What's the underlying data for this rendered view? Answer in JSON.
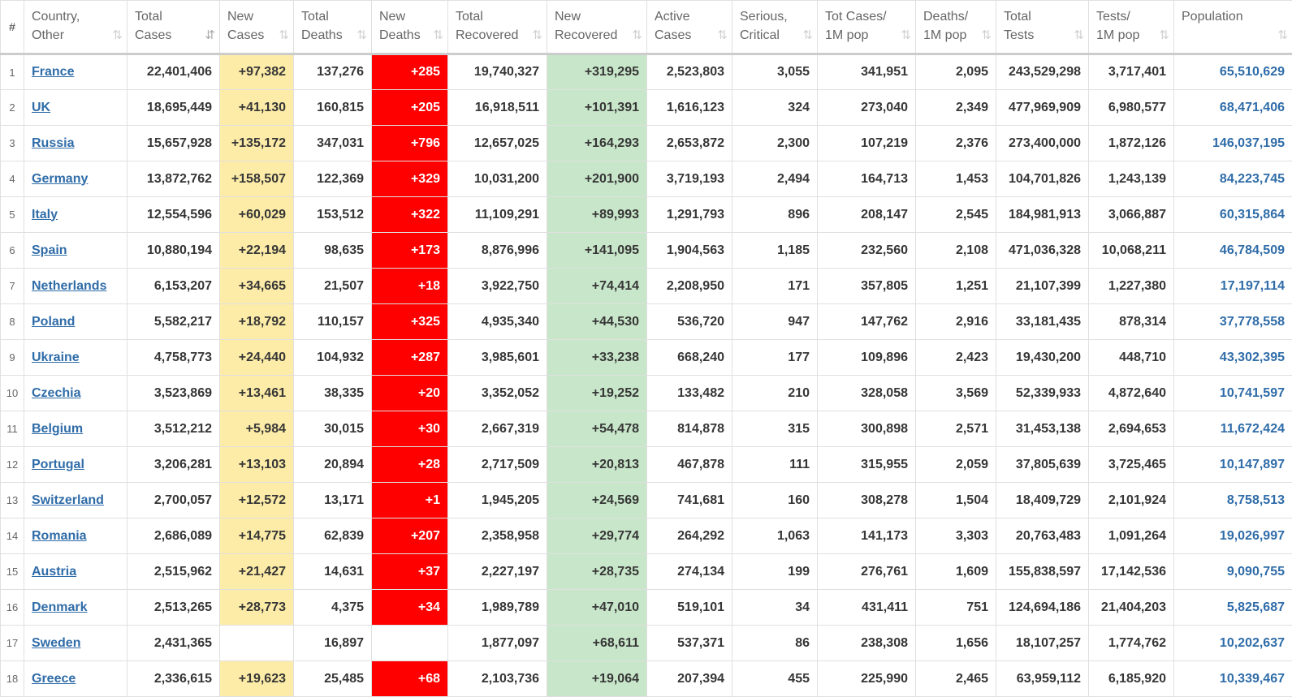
{
  "columns": [
    {
      "key": "idx",
      "line1": "#",
      "line2": ""
    },
    {
      "key": "country",
      "line1": "Country,",
      "line2": "Other"
    },
    {
      "key": "total_cases",
      "line1": "Total",
      "line2": "Cases"
    },
    {
      "key": "new_cases",
      "line1": "New",
      "line2": "Cases"
    },
    {
      "key": "total_deaths",
      "line1": "Total",
      "line2": "Deaths"
    },
    {
      "key": "new_deaths",
      "line1": "New",
      "line2": "Deaths"
    },
    {
      "key": "total_recovered",
      "line1": "Total",
      "line2": "Recovered"
    },
    {
      "key": "new_recovered",
      "line1": "New",
      "line2": "Recovered"
    },
    {
      "key": "active_cases",
      "line1": "Active",
      "line2": "Cases"
    },
    {
      "key": "serious_critical",
      "line1": "Serious,",
      "line2": "Critical"
    },
    {
      "key": "cases_per_1m",
      "line1": "Tot Cases/",
      "line2": "1M pop"
    },
    {
      "key": "deaths_per_1m",
      "line1": "Deaths/",
      "line2": "1M pop"
    },
    {
      "key": "total_tests",
      "line1": "Total",
      "line2": "Tests"
    },
    {
      "key": "tests_per_1m",
      "line1": "Tests/",
      "line2": "1M pop"
    },
    {
      "key": "population",
      "line1": "Population",
      "line2": ""
    }
  ],
  "sort_icon": "⇅",
  "sort_active_icon": "⇵",
  "colors": {
    "new_cases_bg": "#fdeca8",
    "new_deaths_bg": "#ff0000",
    "new_recovered_bg": "#c8e6c9",
    "link": "#2f6ca8"
  },
  "rows": [
    [
      "1",
      "France",
      "22,401,406",
      "+97,382",
      "137,276",
      "+285",
      "19,740,327",
      "+319,295",
      "2,523,803",
      "3,055",
      "341,951",
      "2,095",
      "243,529,298",
      "3,717,401",
      "65,510,629"
    ],
    [
      "2",
      "UK",
      "18,695,449",
      "+41,130",
      "160,815",
      "+205",
      "16,918,511",
      "+101,391",
      "1,616,123",
      "324",
      "273,040",
      "2,349",
      "477,969,909",
      "6,980,577",
      "68,471,406"
    ],
    [
      "3",
      "Russia",
      "15,657,928",
      "+135,172",
      "347,031",
      "+796",
      "12,657,025",
      "+164,293",
      "2,653,872",
      "2,300",
      "107,219",
      "2,376",
      "273,400,000",
      "1,872,126",
      "146,037,195"
    ],
    [
      "4",
      "Germany",
      "13,872,762",
      "+158,507",
      "122,369",
      "+329",
      "10,031,200",
      "+201,900",
      "3,719,193",
      "2,494",
      "164,713",
      "1,453",
      "104,701,826",
      "1,243,139",
      "84,223,745"
    ],
    [
      "5",
      "Italy",
      "12,554,596",
      "+60,029",
      "153,512",
      "+322",
      "11,109,291",
      "+89,993",
      "1,291,793",
      "896",
      "208,147",
      "2,545",
      "184,981,913",
      "3,066,887",
      "60,315,864"
    ],
    [
      "6",
      "Spain",
      "10,880,194",
      "+22,194",
      "98,635",
      "+173",
      "8,876,996",
      "+141,095",
      "1,904,563",
      "1,185",
      "232,560",
      "2,108",
      "471,036,328",
      "10,068,211",
      "46,784,509"
    ],
    [
      "7",
      "Netherlands",
      "6,153,207",
      "+34,665",
      "21,507",
      "+18",
      "3,922,750",
      "+74,414",
      "2,208,950",
      "171",
      "357,805",
      "1,251",
      "21,107,399",
      "1,227,380",
      "17,197,114"
    ],
    [
      "8",
      "Poland",
      "5,582,217",
      "+18,792",
      "110,157",
      "+325",
      "4,935,340",
      "+44,530",
      "536,720",
      "947",
      "147,762",
      "2,916",
      "33,181,435",
      "878,314",
      "37,778,558"
    ],
    [
      "9",
      "Ukraine",
      "4,758,773",
      "+24,440",
      "104,932",
      "+287",
      "3,985,601",
      "+33,238",
      "668,240",
      "177",
      "109,896",
      "2,423",
      "19,430,200",
      "448,710",
      "43,302,395"
    ],
    [
      "10",
      "Czechia",
      "3,523,869",
      "+13,461",
      "38,335",
      "+20",
      "3,352,052",
      "+19,252",
      "133,482",
      "210",
      "328,058",
      "3,569",
      "52,339,933",
      "4,872,640",
      "10,741,597"
    ],
    [
      "11",
      "Belgium",
      "3,512,212",
      "+5,984",
      "30,015",
      "+30",
      "2,667,319",
      "+54,478",
      "814,878",
      "315",
      "300,898",
      "2,571",
      "31,453,138",
      "2,694,653",
      "11,672,424"
    ],
    [
      "12",
      "Portugal",
      "3,206,281",
      "+13,103",
      "20,894",
      "+28",
      "2,717,509",
      "+20,813",
      "467,878",
      "111",
      "315,955",
      "2,059",
      "37,805,639",
      "3,725,465",
      "10,147,897"
    ],
    [
      "13",
      "Switzerland",
      "2,700,057",
      "+12,572",
      "13,171",
      "+1",
      "1,945,205",
      "+24,569",
      "741,681",
      "160",
      "308,278",
      "1,504",
      "18,409,729",
      "2,101,924",
      "8,758,513"
    ],
    [
      "14",
      "Romania",
      "2,686,089",
      "+14,775",
      "62,839",
      "+207",
      "2,358,958",
      "+29,774",
      "264,292",
      "1,063",
      "141,173",
      "3,303",
      "20,763,483",
      "1,091,264",
      "19,026,997"
    ],
    [
      "15",
      "Austria",
      "2,515,962",
      "+21,427",
      "14,631",
      "+37",
      "2,227,197",
      "+28,735",
      "274,134",
      "199",
      "276,761",
      "1,609",
      "155,838,597",
      "17,142,536",
      "9,090,755"
    ],
    [
      "16",
      "Denmark",
      "2,513,265",
      "+28,773",
      "4,375",
      "+34",
      "1,989,789",
      "+47,010",
      "519,101",
      "34",
      "431,411",
      "751",
      "124,694,186",
      "21,404,203",
      "5,825,687"
    ],
    [
      "17",
      "Sweden",
      "2,431,365",
      "",
      "16,897",
      "",
      "1,877,097",
      "+68,611",
      "537,371",
      "86",
      "238,308",
      "1,656",
      "18,107,257",
      "1,774,762",
      "10,202,637"
    ],
    [
      "18",
      "Greece",
      "2,336,615",
      "+19,623",
      "25,485",
      "+68",
      "2,103,736",
      "+19,064",
      "207,394",
      "455",
      "225,990",
      "2,465",
      "63,959,112",
      "6,185,920",
      "10,339,467"
    ]
  ]
}
